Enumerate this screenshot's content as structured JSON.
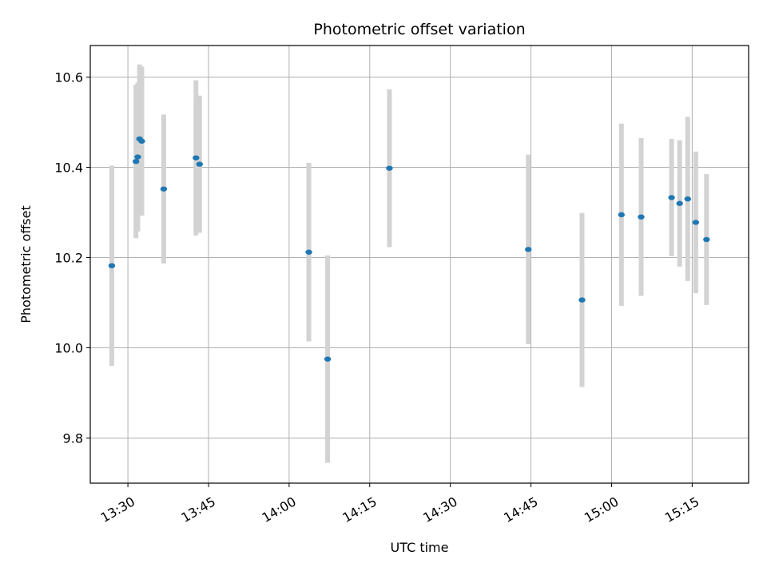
{
  "chart_data": {
    "type": "scatter",
    "title": "Photometric offset variation",
    "xlabel": "UTC time",
    "ylabel": "Photometric offset",
    "x_ticks": [
      "13:30",
      "13:45",
      "14:00",
      "14:15",
      "14:30",
      "14:45",
      "15:00",
      "15:15"
    ],
    "y_ticks": [
      9.8,
      10.0,
      10.2,
      10.4,
      10.6
    ],
    "xlim": [
      "13:23:00",
      "15:25:30"
    ],
    "ylim": [
      9.7,
      10.67
    ],
    "grid": true,
    "colors": {
      "points": "#1f77b4",
      "error_bars": "#d3d3d3",
      "grid": "#b0b0b0"
    },
    "points": [
      {
        "time": "13:27:00",
        "value": 10.182,
        "err": 0.222
      },
      {
        "time": "13:31:30",
        "value": 10.413,
        "err": 0.17
      },
      {
        "time": "13:31:50",
        "value": 10.423,
        "err": 0.165
      },
      {
        "time": "13:32:10",
        "value": 10.463,
        "err": 0.165
      },
      {
        "time": "13:32:35",
        "value": 10.458,
        "err": 0.165
      },
      {
        "time": "13:36:40",
        "value": 10.352,
        "err": 0.165
      },
      {
        "time": "13:42:40",
        "value": 10.421,
        "err": 0.172
      },
      {
        "time": "13:43:20",
        "value": 10.407,
        "err": 0.152
      },
      {
        "time": "14:03:40",
        "value": 10.212,
        "err": 0.198
      },
      {
        "time": "14:07:10",
        "value": 9.975,
        "err": 0.23
      },
      {
        "time": "14:18:40",
        "value": 10.398,
        "err": 0.175
      },
      {
        "time": "14:44:30",
        "value": 10.218,
        "err": 0.21
      },
      {
        "time": "14:54:30",
        "value": 10.106,
        "err": 0.193
      },
      {
        "time": "15:01:50",
        "value": 10.295,
        "err": 0.202
      },
      {
        "time": "15:05:30",
        "value": 10.29,
        "err": 0.175
      },
      {
        "time": "15:11:10",
        "value": 10.333,
        "err": 0.13
      },
      {
        "time": "15:12:40",
        "value": 10.32,
        "err": 0.14
      },
      {
        "time": "15:14:10",
        "value": 10.33,
        "err": 0.182
      },
      {
        "time": "15:15:40",
        "value": 10.278,
        "err": 0.157
      },
      {
        "time": "15:17:40",
        "value": 10.24,
        "err": 0.145
      }
    ]
  }
}
